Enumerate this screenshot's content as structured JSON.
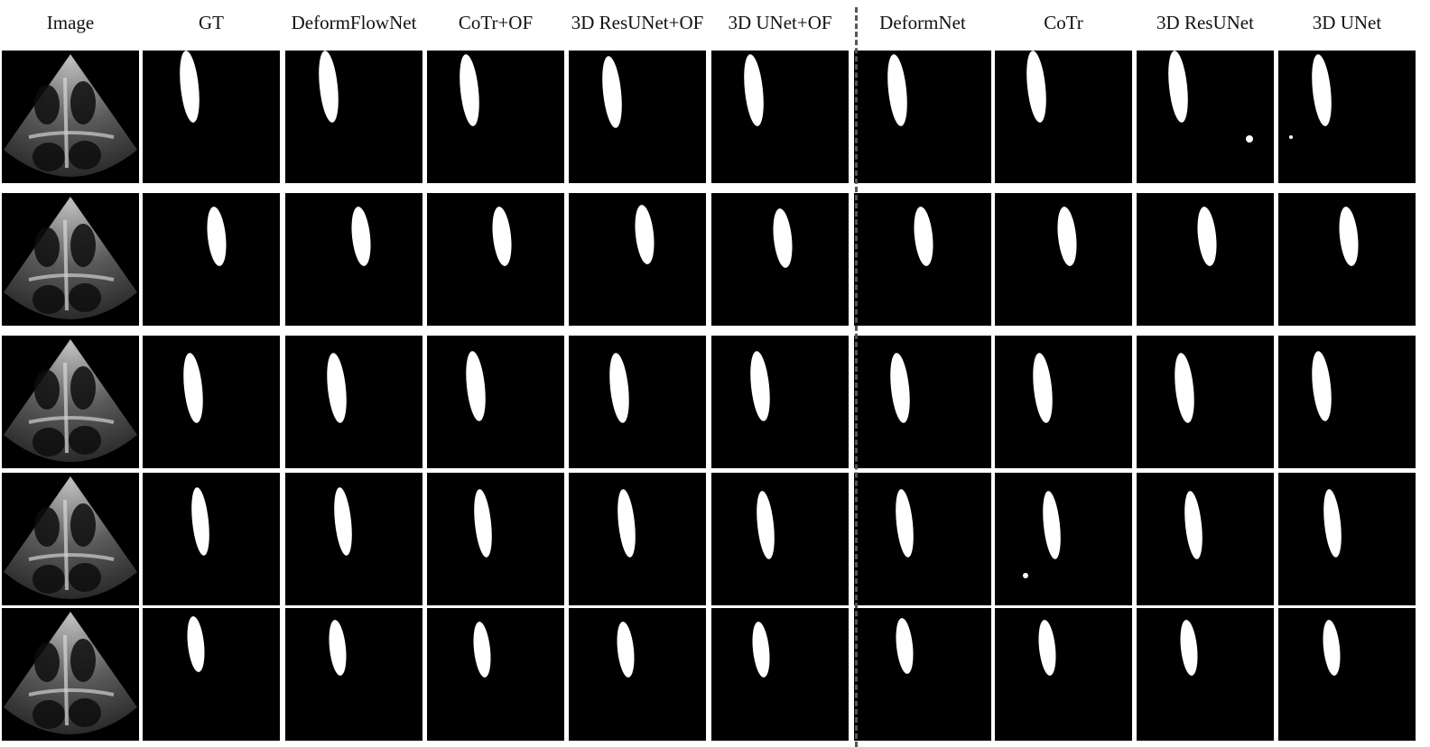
{
  "figure": {
    "columns": [
      {
        "label": "Image",
        "kind": "image"
      },
      {
        "label": "GT",
        "kind": "mask"
      },
      {
        "label": "DeformFlowNet",
        "kind": "mask"
      },
      {
        "label": "CoTr+OF",
        "kind": "mask"
      },
      {
        "label": "3D ResUNet+OF",
        "kind": "mask"
      },
      {
        "label": "3D UNet+OF",
        "kind": "mask"
      },
      {
        "label": "DeformNet",
        "kind": "mask"
      },
      {
        "label": "CoTr",
        "kind": "mask"
      },
      {
        "label": "3D ResUNet",
        "kind": "mask"
      },
      {
        "label": "3D UNet",
        "kind": "mask"
      }
    ],
    "row_count": 5,
    "divider_after_column": "3D UNet+OF",
    "colors": {
      "background": "#000000",
      "mask": "#ffffff",
      "divider": "#555555"
    }
  }
}
